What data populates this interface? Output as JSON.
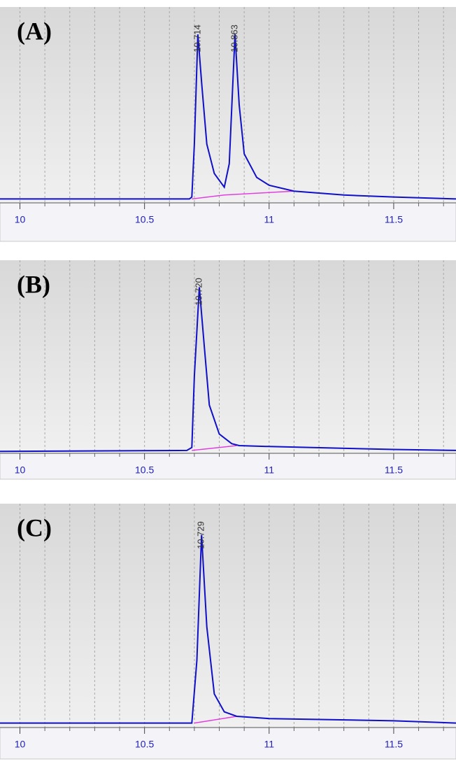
{
  "chart_data": [
    {
      "type": "line",
      "label": "(A)",
      "x": [
        9.92,
        10.68,
        10.69,
        10.7,
        10.714,
        10.73,
        10.75,
        10.78,
        10.82,
        10.84,
        10.863,
        10.88,
        10.9,
        10.95,
        11.0,
        11.1,
        11.3,
        11.5,
        11.75
      ],
      "values": [
        2,
        2,
        3,
        30,
        86,
        60,
        30,
        15,
        8,
        20,
        86,
        50,
        25,
        13,
        9,
        6,
        4,
        3,
        2
      ],
      "color": "#1010c8",
      "baseline": {
        "x": [
          10.69,
          10.82,
          11.1
        ],
        "values": [
          2,
          4,
          6
        ],
        "color": "#e040e0"
      },
      "peaks": [
        {
          "value": 10.714,
          "label": "10.714"
        },
        {
          "value": 10.863,
          "label": "10.863"
        }
      ],
      "xlim": [
        9.92,
        11.75
      ],
      "ylim": [
        0,
        100
      ],
      "xticks": [
        10,
        10.5,
        11,
        11.5
      ],
      "xminorticks": [
        10.1,
        10.2,
        10.3,
        10.4,
        10.6,
        10.7,
        10.8,
        10.9,
        11.1,
        11.2,
        11.3,
        11.4,
        11.6,
        11.7
      ],
      "grid": true
    },
    {
      "type": "line",
      "label": "(B)",
      "x": [
        9.92,
        10.67,
        10.69,
        10.7,
        10.72,
        10.74,
        10.76,
        10.8,
        10.85,
        10.88,
        11.0,
        11.5,
        11.75
      ],
      "values": [
        1,
        1.5,
        3,
        40,
        86,
        55,
        25,
        10,
        5,
        4,
        3.5,
        2,
        1.5
      ],
      "color": "#1010c8",
      "baseline": {
        "x": [
          10.69,
          10.87
        ],
        "values": [
          1.5,
          4
        ],
        "color": "#e040e0"
      },
      "peaks": [
        {
          "value": 10.72,
          "label": "10.720"
        }
      ],
      "xlim": [
        9.92,
        11.75
      ],
      "ylim": [
        0,
        100
      ],
      "xticks": [
        10,
        10.5,
        11,
        11.5
      ],
      "xminorticks": [
        10.1,
        10.2,
        10.3,
        10.4,
        10.6,
        10.7,
        10.8,
        10.9,
        11.1,
        11.2,
        11.3,
        11.4,
        11.6,
        11.7
      ],
      "grid": true
    },
    {
      "type": "line",
      "label": "(C)",
      "x": [
        9.92,
        10.69,
        10.71,
        10.729,
        10.75,
        10.78,
        10.82,
        10.87,
        11.0,
        11.5,
        11.75
      ],
      "values": [
        2,
        2,
        30,
        86,
        45,
        15,
        7,
        5,
        4,
        3,
        2
      ],
      "color": "#1010c8",
      "baseline": {
        "x": [
          10.7,
          10.87
        ],
        "values": [
          2,
          5
        ],
        "color": "#e040e0"
      },
      "peaks": [
        {
          "value": 10.729,
          "label": "10.729"
        }
      ],
      "xlim": [
        9.92,
        11.75
      ],
      "ylim": [
        0,
        100
      ],
      "xticks": [
        10,
        10.5,
        11,
        11.5
      ],
      "xminorticks": [
        10.1,
        10.2,
        10.3,
        10.4,
        10.6,
        10.7,
        10.8,
        10.9,
        11.1,
        11.2,
        11.3,
        11.4,
        11.6,
        11.7
      ],
      "grid": true
    }
  ]
}
